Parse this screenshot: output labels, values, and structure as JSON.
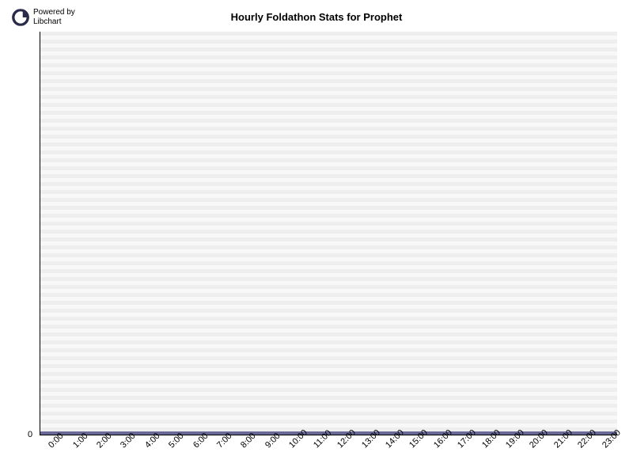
{
  "logo": {
    "powered_by_line1": "Powered by",
    "powered_by_line2": "Libchart",
    "icon_color": "#2a2a4a"
  },
  "chart": {
    "type": "bar",
    "title": "Hourly Foldathon Stats for Prophet",
    "title_fontsize": 13,
    "title_fontweight": "bold",
    "background_color": "#ffffff",
    "plot_background_color": "#eeeeee",
    "grid_color": "#f8f8f8",
    "grid_stripe_height": 5,
    "axis_color": "#000000",
    "baseline_color": "#696998",
    "baseline_height": 4,
    "categories": [
      "0:00",
      "1:00",
      "2:00",
      "3:00",
      "4:00",
      "5:00",
      "6:00",
      "7:00",
      "8:00",
      "9:00",
      "10:00",
      "11:00",
      "12:00",
      "13:00",
      "14:00",
      "15:00",
      "16:00",
      "17:00",
      "18:00",
      "19:00",
      "20:00",
      "21:00",
      "22:00",
      "23:00"
    ],
    "values": [
      0,
      0,
      0,
      0,
      0,
      0,
      0,
      0,
      0,
      0,
      0,
      0,
      0,
      0,
      0,
      0,
      0,
      0,
      0,
      0,
      0,
      0,
      0,
      0
    ],
    "ylim": [
      0,
      0
    ],
    "ytick_labels": [
      "0"
    ],
    "xlabel_rotation": -45,
    "label_fontsize": 11,
    "label_color": "#000000"
  }
}
